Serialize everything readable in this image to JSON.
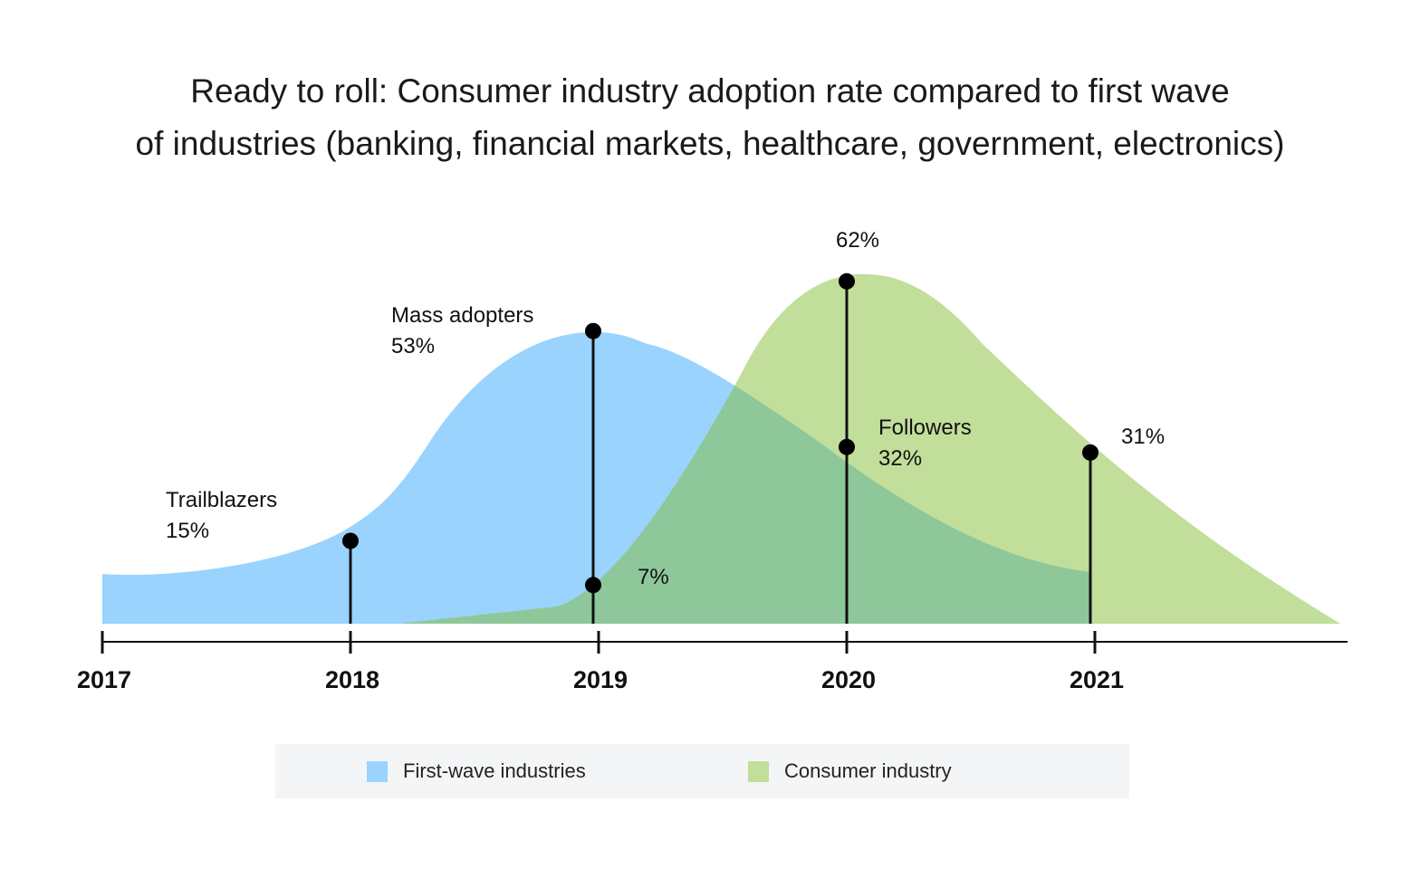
{
  "chart_data": {
    "type": "area",
    "title_line1": "Ready to roll: Consumer industry adoption rate compared to first wave",
    "title_line2": "of industries (banking, financial markets, healthcare, government, electronics)",
    "x_ticks": [
      "2017",
      "2018",
      "2019",
      "2020",
      "2021"
    ],
    "series": [
      {
        "name": "First-wave industries",
        "color": "#9ad3fd"
      },
      {
        "name": "Consumer industry",
        "color": "#c1de9a"
      }
    ],
    "overlap_color": "#8ec79a",
    "markers": [
      {
        "year": 2018,
        "value": 15,
        "label": "Trailblazers",
        "value_label": "15%",
        "series": "First-wave industries"
      },
      {
        "year": 2019,
        "value": 53,
        "label": "Mass adopters",
        "value_label": "53%",
        "series": "First-wave industries"
      },
      {
        "year": 2019,
        "value": 7,
        "label": "",
        "value_label": "7%",
        "series": "Consumer industry"
      },
      {
        "year": 2020,
        "value": 62,
        "label": "",
        "value_label": "62%",
        "series": "Consumer industry"
      },
      {
        "year": 2020,
        "value": 32,
        "label": "Followers",
        "value_label": "32%",
        "series": "First-wave industries"
      },
      {
        "year": 2021,
        "value": 31,
        "label": "",
        "value_label": "31%",
        "series": "Consumer industry"
      }
    ]
  },
  "legend": {
    "items": [
      {
        "label": "First-wave industries",
        "color": "#9ad3fd"
      },
      {
        "label": "Consumer industry",
        "color": "#c1de9a"
      }
    ]
  }
}
